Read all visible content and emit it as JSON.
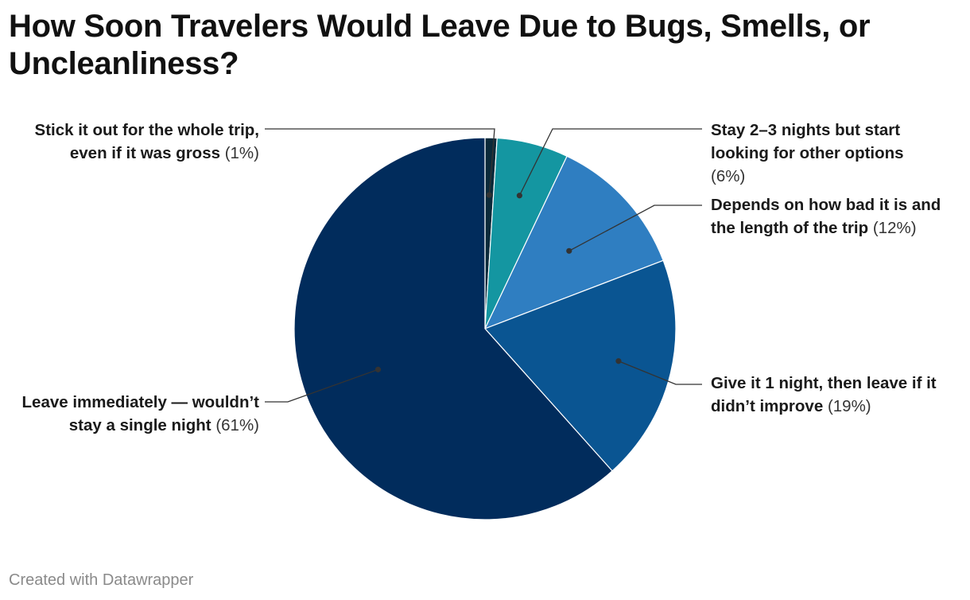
{
  "title": "How Soon Travelers Would Leave Due to Bugs, Smells, or Uncleanliness?",
  "footer": "Created with Datawrapper",
  "chart_data": {
    "type": "pie",
    "title": "How Soon Travelers Would Leave Due to Bugs, Smells, or Uncleanliness?",
    "slices": [
      {
        "label": "Stick it out for the whole trip, even if it was gross",
        "value": 1,
        "pct_label": "(1%)",
        "color": "#0b2a3a"
      },
      {
        "label": "Stay 2–3 nights but start looking for other options",
        "value": 6,
        "pct_label": "(6%)",
        "color": "#1496a1"
      },
      {
        "label": "Depends on how bad it is and the length of the trip",
        "value": 12,
        "pct_label": "(12%)",
        "color": "#2f7ec1"
      },
      {
        "label": "Give it 1 night, then leave if it didn’t improve",
        "value": 19,
        "pct_label": "(19%)",
        "color": "#0a5592"
      },
      {
        "label": "Leave immediately — wouldn’t stay a single night",
        "value": 61,
        "pct_label": "(61%)",
        "color": "#012c5c"
      }
    ]
  }
}
